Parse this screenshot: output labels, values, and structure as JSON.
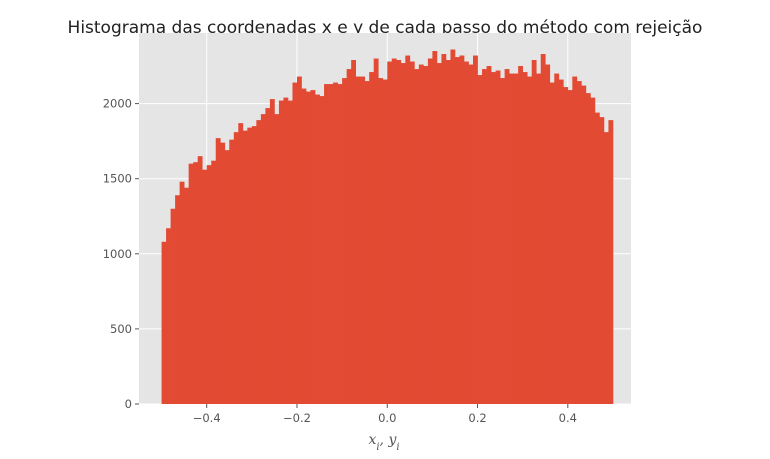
{
  "chart_data": {
    "type": "bar",
    "title": "Histograma das coordenadas x e y de cada passo do método com rejeição",
    "xlabel": "x_i, y_i",
    "ylabel": "",
    "xlim": [
      -0.55,
      0.54
    ],
    "ylim": [
      0,
      2470
    ],
    "xticks": [
      -0.4,
      -0.2,
      0.0,
      0.2,
      0.4
    ],
    "xtick_labels": [
      "−0.4",
      "−0.2",
      "0.0",
      "0.2",
      "0.4"
    ],
    "yticks": [
      0,
      500,
      1000,
      1500,
      2000
    ],
    "ytick_labels": [
      "0",
      "500",
      "1000",
      "1500",
      "2000"
    ],
    "grid": true,
    "legend": "none",
    "bins": {
      "start": -0.5,
      "width": 0.01,
      "count": 100
    },
    "values": [
      1080,
      1170,
      1300,
      1390,
      1480,
      1440,
      1600,
      1610,
      1650,
      1560,
      1590,
      1620,
      1770,
      1740,
      1690,
      1760,
      1810,
      1870,
      1820,
      1840,
      1850,
      1890,
      1930,
      1970,
      2030,
      1930,
      2020,
      2040,
      2020,
      2140,
      2180,
      2100,
      2080,
      2090,
      2060,
      2050,
      2130,
      2130,
      2140,
      2130,
      2170,
      2230,
      2290,
      2180,
      2180,
      2150,
      2210,
      2300,
      2170,
      2160,
      2280,
      2300,
      2290,
      2270,
      2320,
      2280,
      2230,
      2260,
      2250,
      2300,
      2350,
      2270,
      2330,
      2290,
      2360,
      2310,
      2320,
      2280,
      2260,
      2320,
      2190,
      2230,
      2250,
      2210,
      2220,
      2170,
      2230,
      2200,
      2200,
      2250,
      2210,
      2180,
      2290,
      2200,
      2330,
      2260,
      2140,
      2200,
      2160,
      2110,
      2090,
      2180,
      2150,
      2120,
      2070,
      2040,
      1940,
      1910,
      1810,
      1890
    ]
  },
  "colors": {
    "bar": "#E24A33",
    "plot_background": "#E5E5E5",
    "grid": "#FFFFFF",
    "text": "#555555",
    "title": "#222222"
  }
}
